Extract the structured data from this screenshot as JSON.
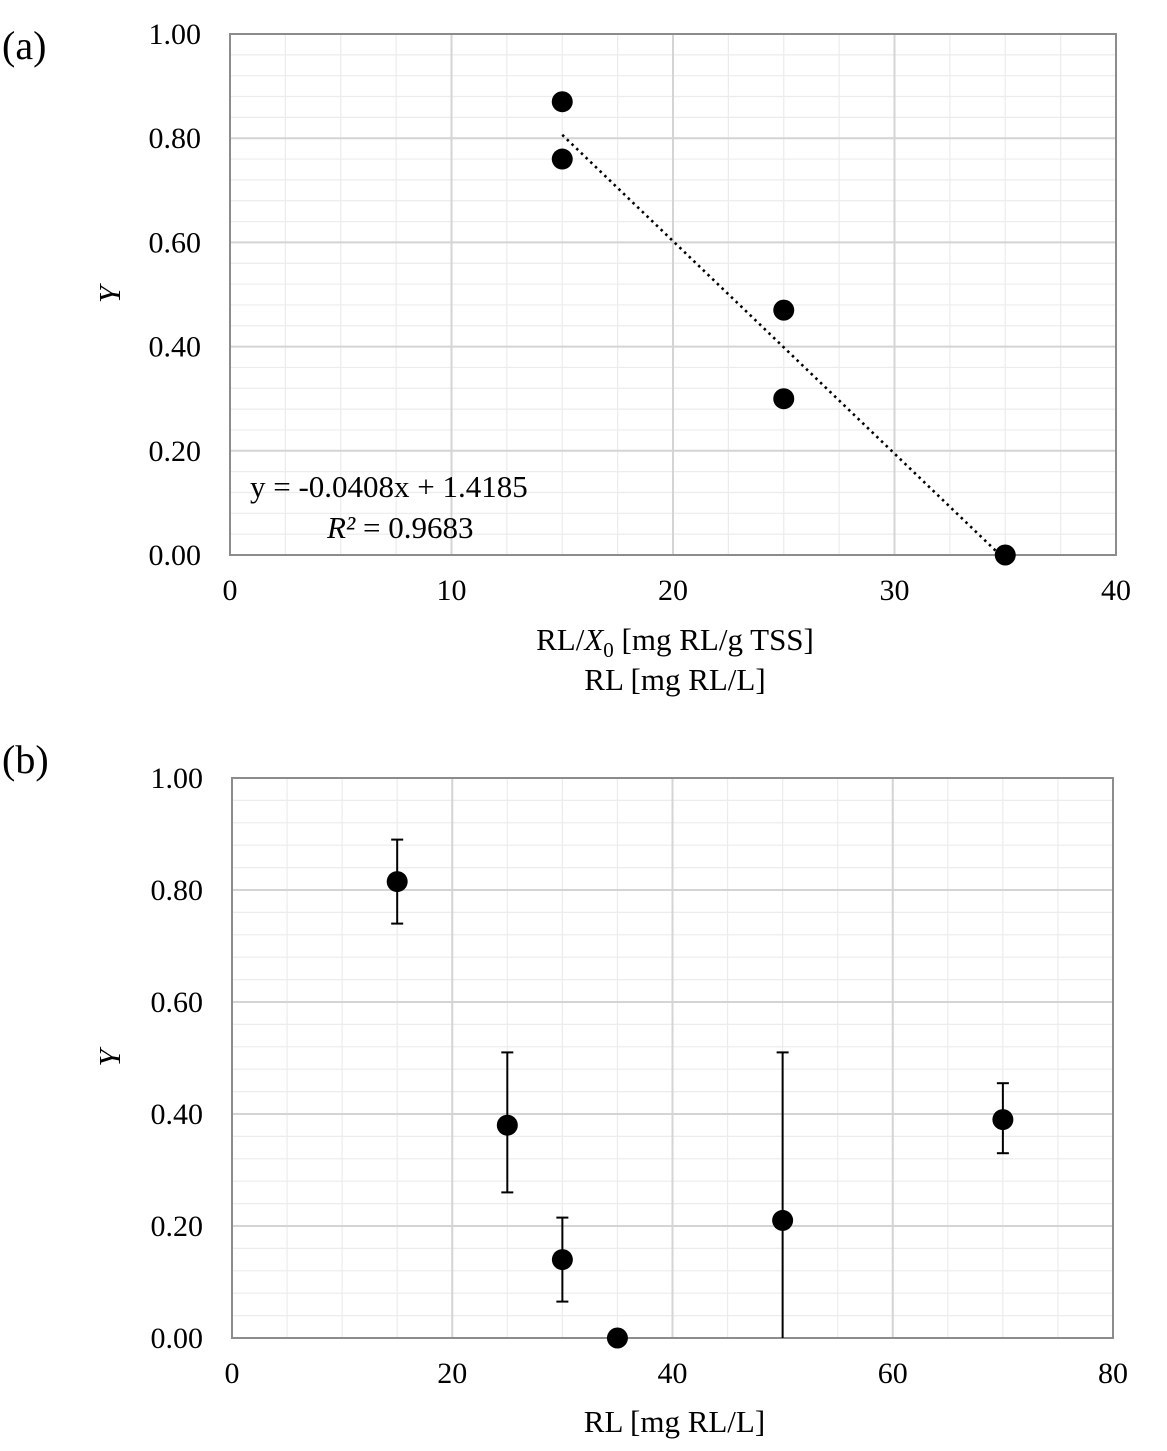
{
  "chart_data": [
    {
      "panel": "(a)",
      "type": "scatter",
      "ylabel": "Y",
      "xlabel_line1_parts": [
        "RL/",
        "X",
        "0",
        " [mg RL/g TSS]"
      ],
      "xlabel_line2": "RL [mg RL/L]",
      "xlim": [
        0,
        40
      ],
      "ylim": [
        0,
        1
      ],
      "x_ticks": [
        "0",
        "10",
        "20",
        "30",
        "40"
      ],
      "y_ticks": [
        "0.00",
        "0.20",
        "0.40",
        "0.60",
        "0.80",
        "1.00"
      ],
      "grid": true,
      "points": [
        {
          "x": 15,
          "y": 0.87
        },
        {
          "x": 15,
          "y": 0.76
        },
        {
          "x": 25,
          "y": 0.47
        },
        {
          "x": 25,
          "y": 0.3
        },
        {
          "x": 35,
          "y": 0.0
        }
      ],
      "trendline": {
        "slope": -0.0408,
        "intercept": 1.4185,
        "x_range": [
          15,
          35
        ],
        "style": "dotted"
      },
      "equation_text": "y = -0.0408x + 1.4185",
      "r2_symbol": "R²",
      "r2_value": " = 0.9683"
    },
    {
      "panel": "(b)",
      "type": "scatter",
      "ylabel": "Y",
      "xlabel": "RL [mg RL/L]",
      "xlim": [
        0,
        80
      ],
      "ylim": [
        0,
        1
      ],
      "x_ticks": [
        "0",
        "20",
        "40",
        "60",
        "80"
      ],
      "y_ticks": [
        "0.00",
        "0.20",
        "0.40",
        "0.60",
        "0.80",
        "1.00"
      ],
      "grid": true,
      "points": [
        {
          "x": 15,
          "y": 0.815,
          "err_low": 0.74,
          "err_high": 0.89
        },
        {
          "x": 25,
          "y": 0.38,
          "err_low": 0.26,
          "err_high": 0.51
        },
        {
          "x": 30,
          "y": 0.14,
          "err_low": 0.065,
          "err_high": 0.215
        },
        {
          "x": 35,
          "y": 0.0,
          "err_low": 0.0,
          "err_high": 0.0
        },
        {
          "x": 50,
          "y": 0.21,
          "err_low": 0.0,
          "err_high": 0.51
        },
        {
          "x": 70,
          "y": 0.39,
          "err_low": 0.33,
          "err_high": 0.455
        }
      ]
    }
  ]
}
